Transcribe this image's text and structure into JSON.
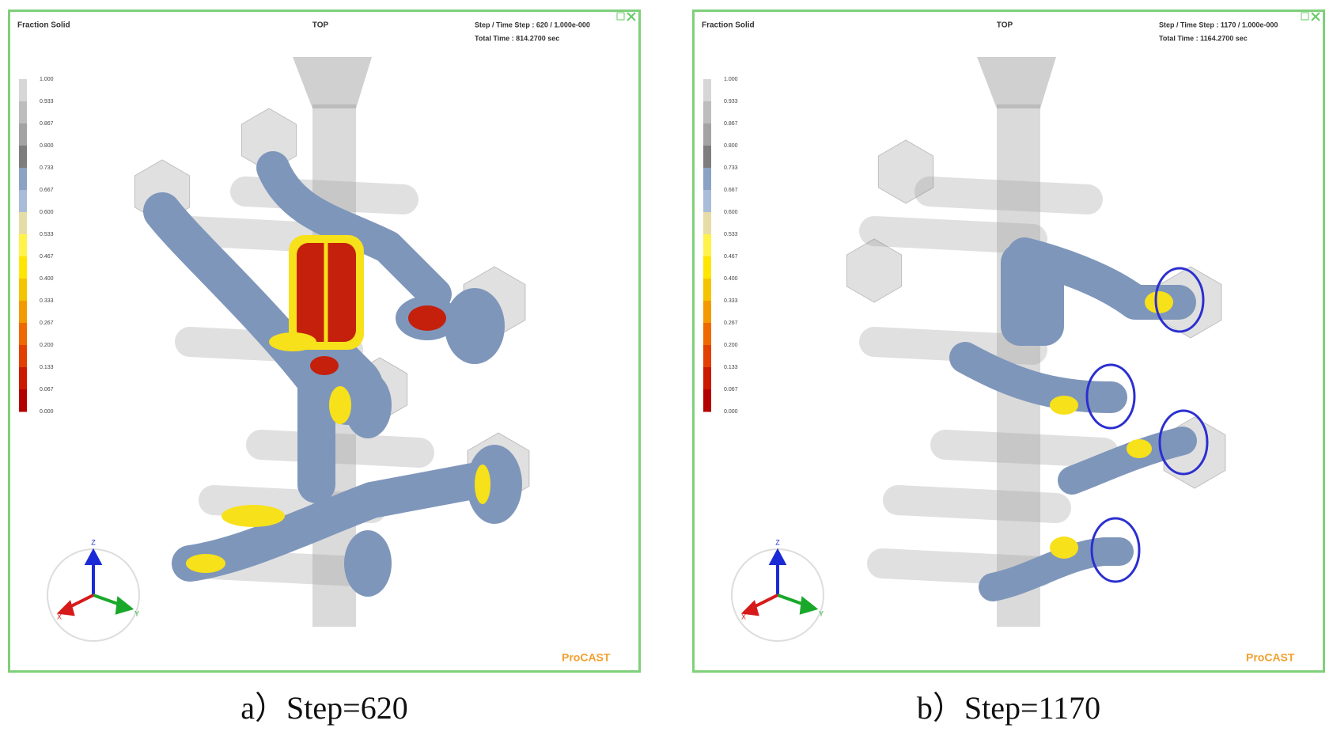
{
  "panels": [
    {
      "header": {
        "quantity": "Fraction Solid",
        "view": "TOP",
        "step_line": "Step / Time Step : 620 / 1.000e-000",
        "time_line": "Total Time : 814.2700 sec"
      },
      "legend_labels": [
        "1.000",
        "0.933",
        "0.867",
        "0.800",
        "0.733",
        "0.667",
        "0.600",
        "0.533",
        "0.467",
        "0.400",
        "0.333",
        "0.267",
        "0.200",
        "0.133",
        "0.067",
        "0.000"
      ],
      "axes": [
        "Z",
        "X",
        "Y"
      ],
      "logo": "ProCAST",
      "caption": "a）Step=620"
    },
    {
      "header": {
        "quantity": "Fraction Solid",
        "view": "TOP",
        "step_line": "Step / Time Step : 1170 / 1.000e-000",
        "time_line": "Total Time : 1164.2700 sec"
      },
      "legend_labels": [
        "1.000",
        "0.933",
        "0.867",
        "0.800",
        "0.733",
        "0.667",
        "0.600",
        "0.533",
        "0.467",
        "0.400",
        "0.333",
        "0.267",
        "0.200",
        "0.133",
        "0.067",
        "0.000"
      ],
      "axes": [
        "Z",
        "X",
        "Y"
      ],
      "logo": "ProCAST",
      "caption": "b）Step=1170"
    }
  ]
}
